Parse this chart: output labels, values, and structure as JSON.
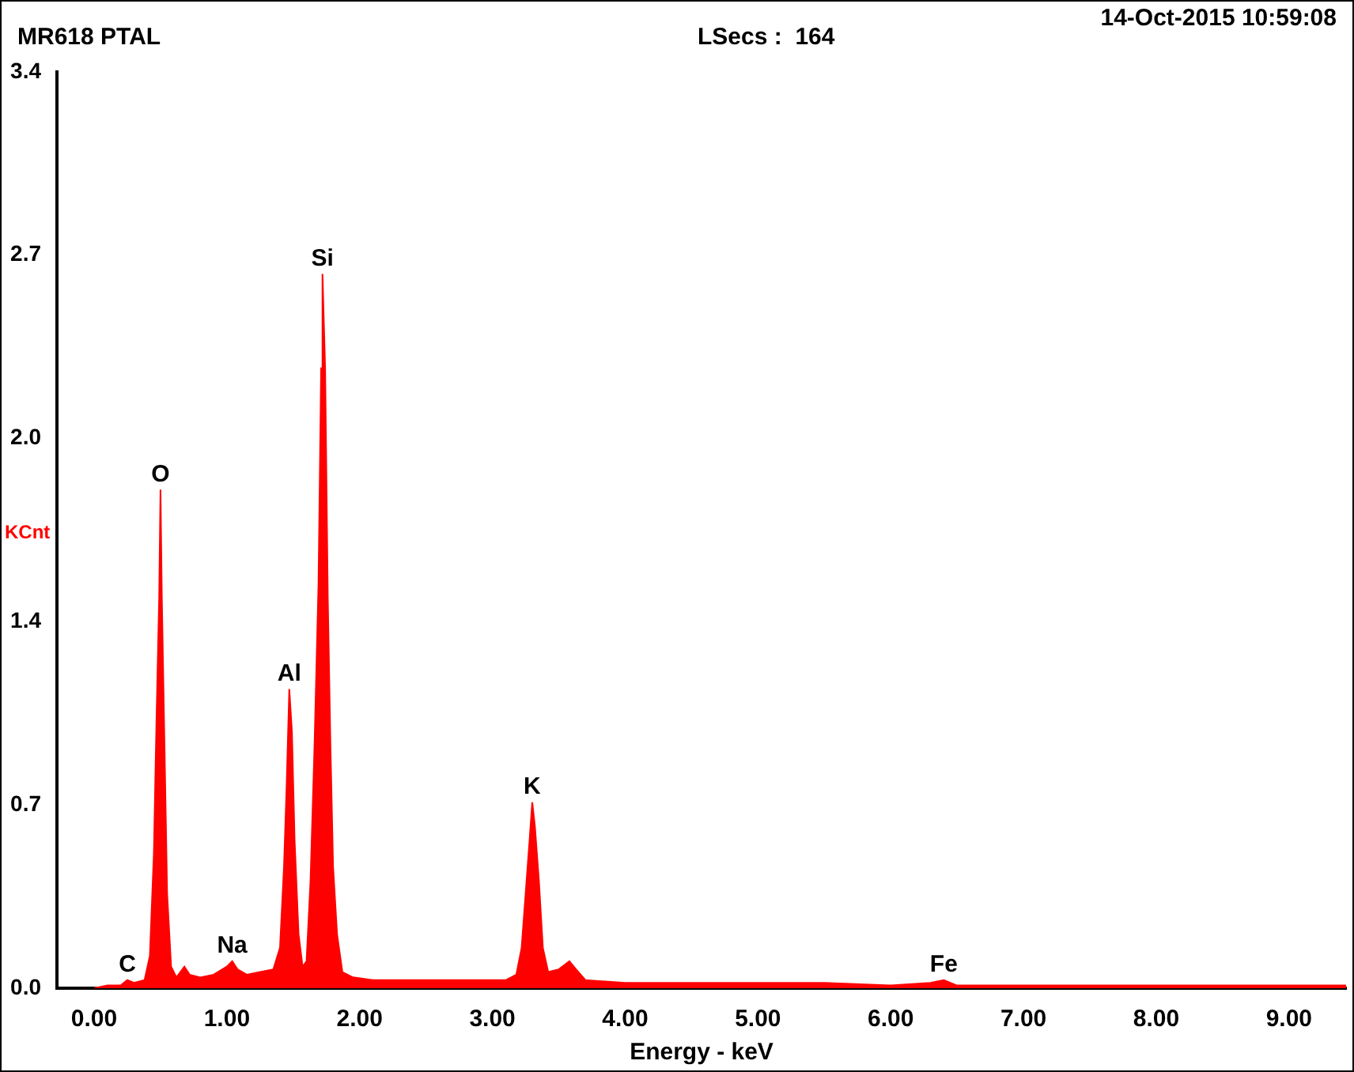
{
  "chart_data": {
    "type": "area",
    "title": "MR618 PTAL",
    "xlabel": "Energy - keV",
    "ylabel": "KCnt",
    "annotations": [
      "14-Oct-2015 10:59:08",
      "LSecs :  164",
      {
        "text": "C",
        "x": 0.25,
        "y": 0.03
      },
      {
        "text": "O",
        "x": 0.5,
        "y": 1.85
      },
      {
        "text": "Na",
        "x": 1.04,
        "y": 0.1
      },
      {
        "text": "Al",
        "x": 1.47,
        "y": 1.11
      },
      {
        "text": "Si",
        "x": 1.72,
        "y": 2.65
      },
      {
        "text": "K",
        "x": 3.3,
        "y": 0.69
      },
      {
        "text": "Fe",
        "x": 6.4,
        "y": 0.03
      }
    ],
    "x": [
      0.0,
      0.1,
      0.2,
      0.25,
      0.3,
      0.38,
      0.42,
      0.45,
      0.47,
      0.49,
      0.5,
      0.51,
      0.53,
      0.55,
      0.58,
      0.62,
      0.68,
      0.72,
      0.8,
      0.9,
      1.0,
      1.04,
      1.08,
      1.15,
      1.25,
      1.35,
      1.4,
      1.43,
      1.45,
      1.47,
      1.49,
      1.51,
      1.54,
      1.57,
      1.6,
      1.63,
      1.66,
      1.69,
      1.71,
      1.72,
      1.74,
      1.76,
      1.78,
      1.8,
      1.83,
      1.87,
      1.95,
      2.1,
      2.3,
      2.6,
      2.9,
      3.1,
      3.18,
      3.22,
      3.25,
      3.28,
      3.3,
      3.32,
      3.35,
      3.38,
      3.42,
      3.5,
      3.58,
      3.63,
      3.7,
      4.0,
      4.5,
      5.0,
      5.5,
      6.0,
      6.3,
      6.4,
      6.5,
      7.0,
      8.0,
      9.0,
      9.43
    ],
    "values": [
      0,
      0.01,
      0.01,
      0.03,
      0.02,
      0.03,
      0.12,
      0.5,
      1.0,
      1.45,
      1.85,
      1.45,
      0.9,
      0.35,
      0.08,
      0.04,
      0.08,
      0.05,
      0.04,
      0.05,
      0.08,
      0.1,
      0.07,
      0.05,
      0.06,
      0.07,
      0.15,
      0.45,
      0.75,
      1.11,
      0.95,
      0.55,
      0.2,
      0.08,
      0.1,
      0.4,
      0.9,
      1.5,
      2.3,
      2.65,
      2.3,
      1.45,
      0.9,
      0.45,
      0.2,
      0.06,
      0.04,
      0.03,
      0.03,
      0.03,
      0.03,
      0.03,
      0.05,
      0.15,
      0.35,
      0.55,
      0.69,
      0.6,
      0.4,
      0.15,
      0.06,
      0.07,
      0.1,
      0.07,
      0.03,
      0.02,
      0.02,
      0.02,
      0.02,
      0.01,
      0.02,
      0.03,
      0.01,
      0.01,
      0.01,
      0.01,
      0.01
    ],
    "color": "#ff0000",
    "xlim": [
      -0.28,
      9.43
    ],
    "xticks": [
      {
        "value": 0,
        "label": "0.00"
      },
      {
        "value": 1,
        "label": "1.00"
      },
      {
        "value": 2,
        "label": "2.00"
      },
      {
        "value": 3,
        "label": "3.00"
      },
      {
        "value": 4,
        "label": "4.00"
      },
      {
        "value": 5,
        "label": "5.00"
      },
      {
        "value": 6,
        "label": "6.00"
      },
      {
        "value": 7,
        "label": "7.00"
      },
      {
        "value": 8,
        "label": "8.00"
      },
      {
        "value": 9,
        "label": "9.00"
      }
    ],
    "ylim": [
      0,
      3.4
    ],
    "yticks": [
      {
        "value": 0,
        "label": "0.0"
      },
      {
        "value": 0.68,
        "label": "0.7"
      },
      {
        "value": 1.36,
        "label": "1.4"
      },
      {
        "value": 2.04,
        "label": "2.0"
      },
      {
        "value": 2.72,
        "label": "2.7"
      },
      {
        "value": 3.4,
        "label": "3.4"
      }
    ],
    "grid": false,
    "legend": false
  }
}
